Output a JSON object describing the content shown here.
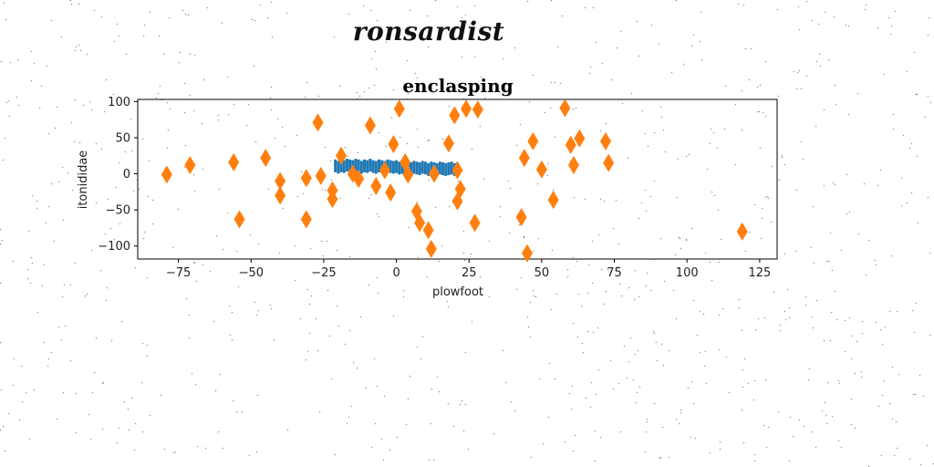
{
  "page": {
    "supertitle": "ronsardist"
  },
  "colors": {
    "series_blue": "#1f77b4",
    "series_orange": "#ff7f0e",
    "noise": "#444444"
  },
  "chart_data": {
    "type": "scatter",
    "title": "enclasping",
    "xlabel": "plowfoot",
    "ylabel": "itonididae",
    "xlim": [
      -89,
      131
    ],
    "ylim": [
      -118,
      103
    ],
    "xticks": [
      -75,
      -50,
      -25,
      0,
      25,
      50,
      75,
      100,
      125
    ],
    "yticks": [
      -100,
      -50,
      0,
      50,
      100
    ],
    "xtick_labels": [
      "−75",
      "−50",
      "−25",
      "0",
      "25",
      "50",
      "75",
      "100",
      "125"
    ],
    "ytick_labels": [
      "−100",
      "−50",
      "0",
      "50",
      "100"
    ],
    "grid": false,
    "legend": false,
    "series": [
      {
        "marker": "vline",
        "color": "#1f77b4",
        "x": [
          -21,
          -20,
          -19,
          -18,
          -17,
          -16,
          -15,
          -14,
          -13,
          -12,
          -11,
          -10,
          -9,
          -8,
          -7,
          -6,
          -5,
          -4,
          -3,
          -2,
          -1,
          0,
          1,
          2,
          3,
          4,
          5,
          6,
          7,
          8,
          9,
          10,
          11,
          12,
          13,
          14,
          15,
          16,
          17,
          18,
          19,
          20,
          21
        ],
        "y": [
          11,
          9,
          11,
          10,
          12,
          11,
          10,
          12,
          11,
          9,
          11,
          10,
          12,
          10,
          9,
          11,
          10,
          9,
          11,
          10,
          9,
          10,
          8,
          9,
          10,
          8,
          7,
          9,
          8,
          7,
          9,
          8,
          6,
          8,
          7,
          6,
          8,
          7,
          6,
          7,
          8,
          6,
          7
        ]
      },
      {
        "marker": "diamond",
        "color": "#ff7f0e",
        "x": [
          -79,
          -71,
          -56,
          -54,
          -45,
          -40,
          -40,
          -31,
          -31,
          -27,
          -26,
          -22,
          -22,
          -19,
          -15,
          -13,
          -9,
          -7,
          -4,
          -2,
          -1,
          1,
          3,
          4,
          7,
          8,
          11,
          12,
          13,
          18,
          20,
          21,
          21,
          22,
          24,
          27,
          28,
          43,
          44,
          45,
          47,
          50,
          54,
          58,
          60,
          61,
          63,
          72,
          73,
          119
        ],
        "y": [
          -1,
          12,
          16,
          -63,
          22,
          -10,
          -30,
          -6,
          -63,
          71,
          -3,
          -23,
          -35,
          25,
          0,
          -7,
          67,
          -17,
          5,
          -26,
          41,
          90,
          16,
          -1,
          -52,
          -68,
          -78,
          -104,
          0,
          42,
          81,
          5,
          -38,
          -21,
          90,
          -68,
          89,
          -60,
          22,
          -110,
          45,
          6,
          -36,
          91,
          40,
          12,
          49,
          45,
          15,
          -80
        ]
      }
    ]
  }
}
